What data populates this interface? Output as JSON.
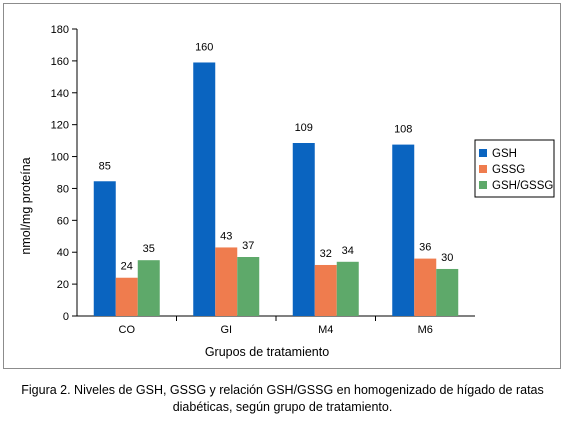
{
  "chart_data": {
    "type": "bar",
    "categories": [
      "CO",
      "GI",
      "M4",
      "M6"
    ],
    "series": [
      {
        "name": "GSH",
        "color": "#0a64c0",
        "values": [
          85,
          160,
          109,
          108
        ],
        "plotted": [
          84.5,
          159,
          108.5,
          107.5
        ]
      },
      {
        "name": "GSSG",
        "color": "#ef7c4e",
        "values": [
          24,
          43,
          32,
          36
        ],
        "plotted": [
          24,
          43,
          32,
          36
        ]
      },
      {
        "name": "GSH/GSSG",
        "color": "#5ea96a",
        "values": [
          35,
          37,
          34,
          30
        ],
        "plotted": [
          35,
          37,
          34,
          29.5
        ]
      }
    ],
    "xlabel": "Grupos de tratamiento",
    "ylabel": "nmol/mg proteína",
    "ylim": [
      0,
      180
    ],
    "yticks": [
      0,
      20,
      40,
      60,
      80,
      100,
      120,
      140,
      160,
      180
    ],
    "grid": false,
    "legend_position": "right"
  },
  "caption": {
    "line1": "Figura 2. Niveles de GSH, GSSG y relación GSH/GSSG en homogenizado de hígado de ratas",
    "line2": "diabéticas, según grupo de tratamiento."
  }
}
